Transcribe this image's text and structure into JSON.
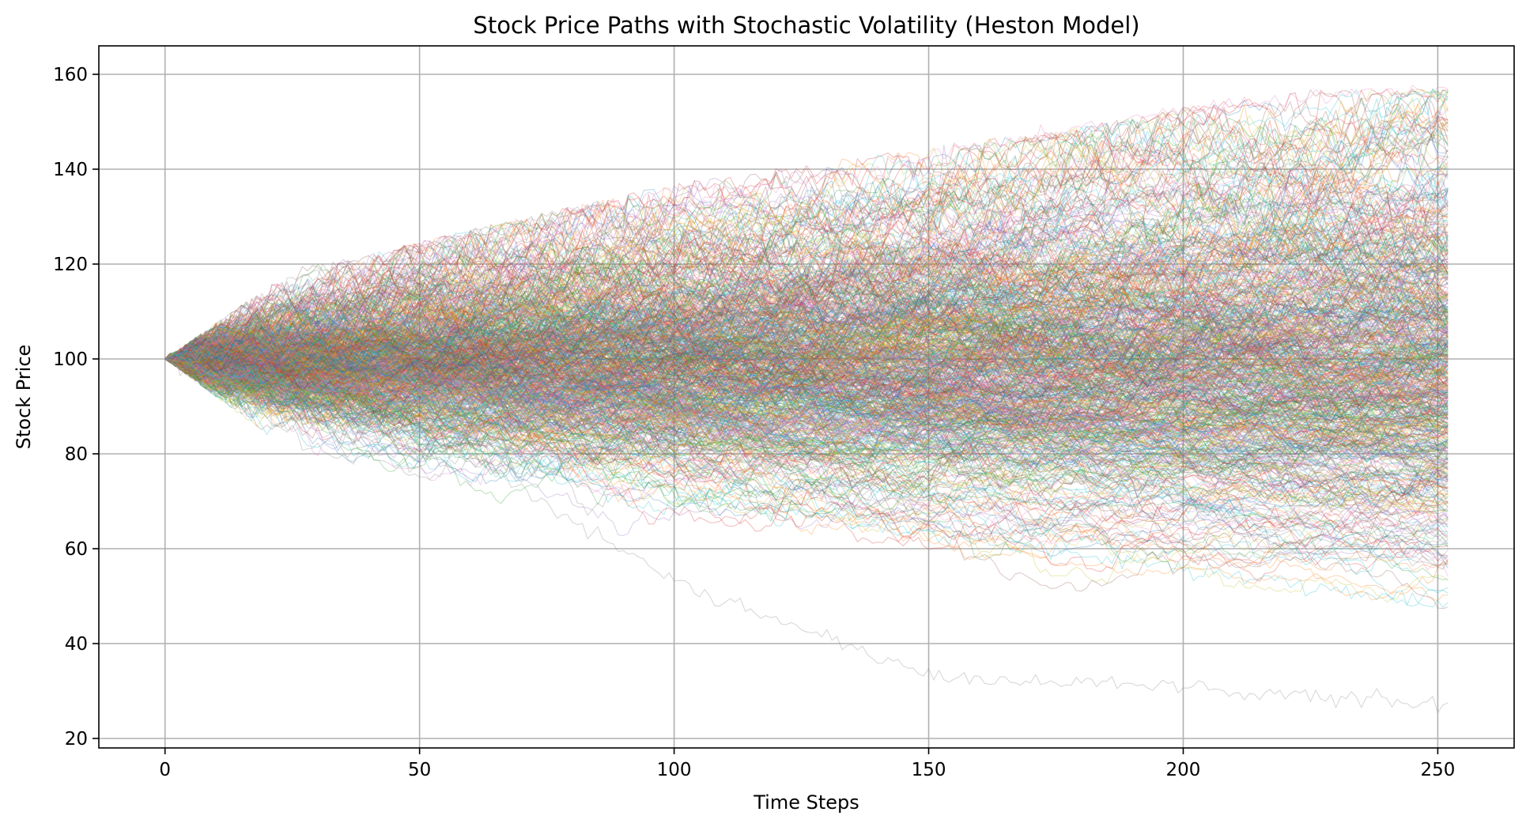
{
  "chart_data": {
    "type": "line",
    "title": "Stock Price Paths with Stochastic Volatility (Heston Model)",
    "xlabel": "Time Steps",
    "ylabel": "Stock Price",
    "xlim": [
      -13,
      265
    ],
    "ylim": [
      18,
      166
    ],
    "xticks": [
      0,
      50,
      100,
      150,
      200,
      250
    ],
    "yticks": [
      20,
      40,
      60,
      80,
      100,
      120,
      140,
      160
    ],
    "grid": true,
    "legend": "none",
    "line_alpha": 0.3,
    "n_steps": 252,
    "initial_price": 100,
    "series_colors": [
      "#1f77b4",
      "#ff7f0e",
      "#2ca02c",
      "#d62728",
      "#9467bd",
      "#8c564b",
      "#e377c2",
      "#7f7f7f",
      "#bcbd22",
      "#17becf"
    ],
    "summary_series": [
      {
        "values_at_ticks": {
          "0": 100,
          "50": 97,
          "100": 101,
          "150": 98,
          "200": 103,
          "250": 104
        }
      },
      {
        "values_at_ticks": {
          "0": 100,
          "50": 86,
          "100": 53,
          "150": 33,
          "200": 31,
          "250": 27
        }
      },
      {
        "values_at_ticks": {
          "0": 100,
          "50": 120,
          "100": 132,
          "150": 143,
          "200": 153,
          "250": 157
        }
      },
      {
        "values_at_ticks": {
          "0": 100,
          "50": 83,
          "100": 72,
          "150": 63,
          "200": 56,
          "250": 48
        }
      }
    ],
    "envelope": {
      "x": [
        0,
        25,
        50,
        75,
        100,
        125,
        150,
        175,
        200,
        225,
        252
      ],
      "upper": [
        100,
        119,
        125,
        131,
        137,
        141,
        145,
        148,
        153,
        157,
        157
      ],
      "lower": [
        100,
        80,
        75,
        66,
        60,
        57,
        54,
        50,
        48,
        47,
        46
      ]
    }
  }
}
